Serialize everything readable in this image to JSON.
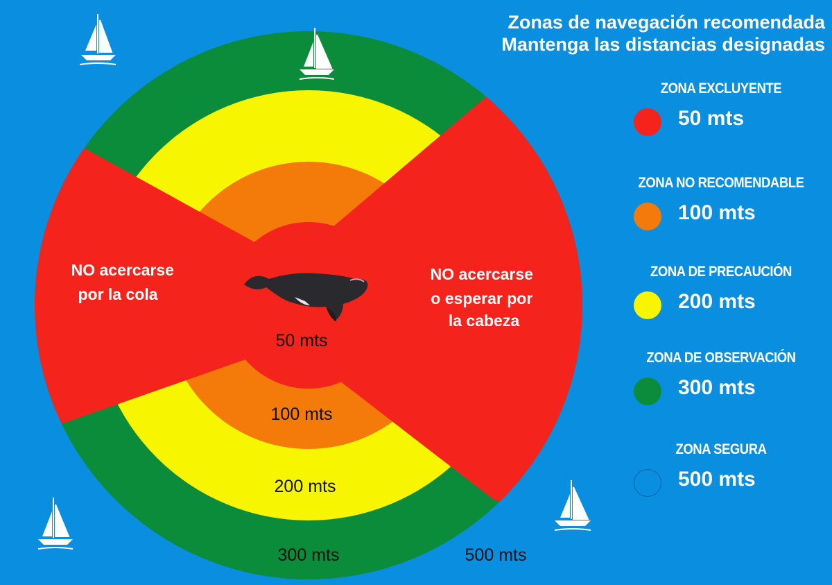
{
  "header": {
    "line1": "Zonas de navegación recomendada",
    "line2": "Mantenga las distancias designadas"
  },
  "legend": [
    {
      "label": "ZONA EXCLUYENTE",
      "value": "50 mts",
      "color": "#f4231c"
    },
    {
      "label": "ZONA NO RECOMENDABLE",
      "value": "100 mts",
      "color": "#f47a0a"
    },
    {
      "label": "ZONA DE PRECAUCIÓN",
      "value": "200 mts",
      "color": "#f7f500"
    },
    {
      "label": "ZONA DE OBSERVACIÓN",
      "value": "300 mts",
      "color": "#0b8c3a"
    },
    {
      "label": "ZONA SEGURA",
      "value": "500 mts",
      "color": "#0a8fe0"
    }
  ],
  "diagram": {
    "tail_warning": [
      "NO acercarse",
      "por la cola"
    ],
    "head_warning": [
      "NO acercarse",
      "o esperar por",
      "la cabeza"
    ],
    "ring_labels": {
      "r50": "50 mts",
      "r100": "100 mts",
      "r200": "200 mts",
      "r300": "300 mts",
      "r500": "500 mts"
    }
  },
  "colors": {
    "background": "#0a8fe0",
    "red": "#f4231c",
    "orange": "#f47a0a",
    "yellow": "#f7f500",
    "green": "#0b8c3a",
    "whale": "#2a2a2e"
  },
  "icons": [
    "sailboat-icon",
    "whale-icon"
  ]
}
